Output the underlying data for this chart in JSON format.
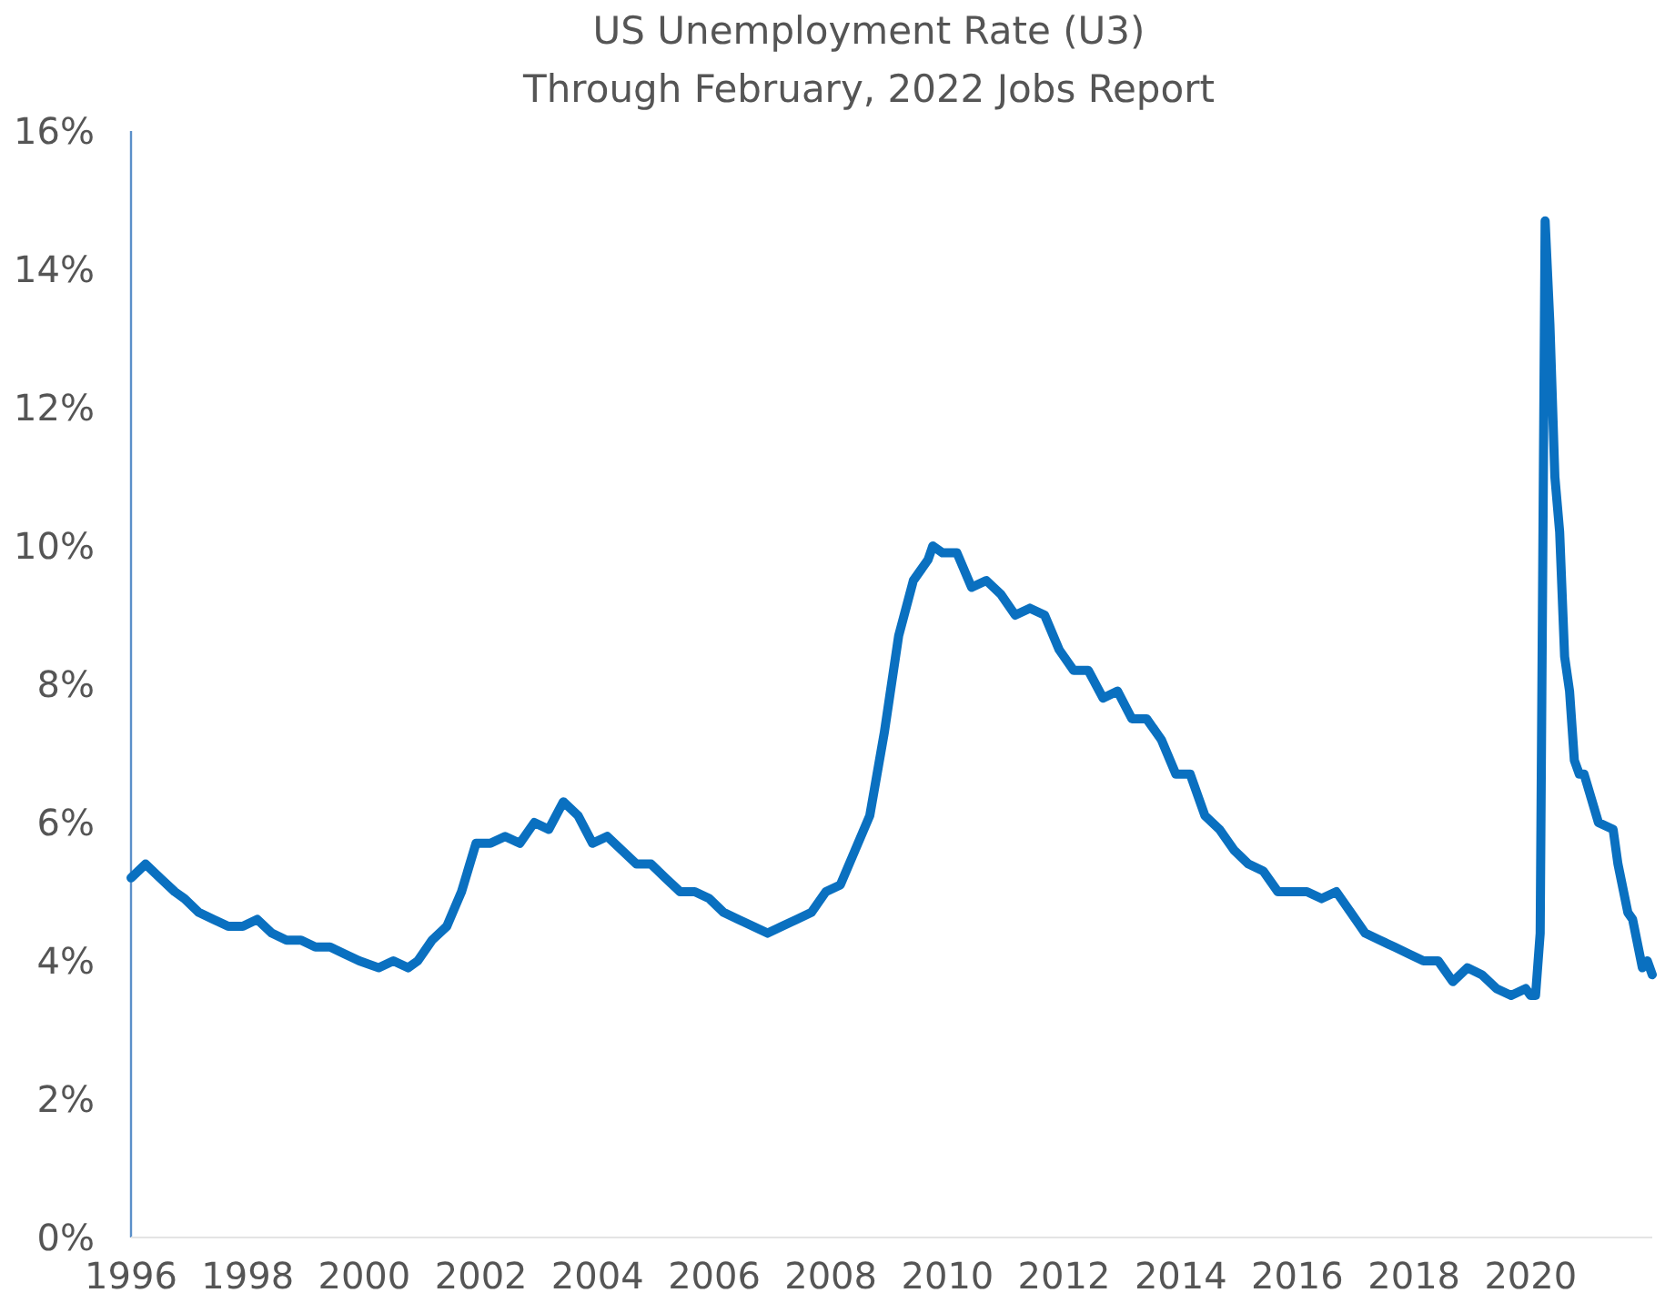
{
  "chart_data": {
    "type": "line",
    "title": "US Unemployment Rate (U3)",
    "subtitle": "Through February, 2022 Jobs Report",
    "x": [
      "1996-01",
      "1996-04",
      "1996-07",
      "1996-10",
      "1996-12",
      "1997-03",
      "1997-06",
      "1997-09",
      "1997-12",
      "1998-03",
      "1998-06",
      "1998-09",
      "1998-12",
      "1999-03",
      "1999-06",
      "1999-09",
      "1999-12",
      "2000-04",
      "2000-07",
      "2000-10",
      "2000-12",
      "2001-03",
      "2001-06",
      "2001-09",
      "2001-12",
      "2002-03",
      "2002-06",
      "2002-09",
      "2002-12",
      "2003-03",
      "2003-06",
      "2003-09",
      "2003-12",
      "2004-03",
      "2004-06",
      "2004-09",
      "2004-12",
      "2005-03",
      "2005-06",
      "2005-09",
      "2005-12",
      "2006-03",
      "2006-06",
      "2006-09",
      "2006-12",
      "2007-03",
      "2007-06",
      "2007-09",
      "2007-12",
      "2008-03",
      "2008-06",
      "2008-09",
      "2008-12",
      "2009-03",
      "2009-06",
      "2009-09",
      "2009-10",
      "2009-12",
      "2010-03",
      "2010-06",
      "2010-09",
      "2010-12",
      "2011-03",
      "2011-06",
      "2011-09",
      "2011-12",
      "2012-03",
      "2012-06",
      "2012-09",
      "2012-12",
      "2013-03",
      "2013-06",
      "2013-09",
      "2013-12",
      "2014-03",
      "2014-06",
      "2014-09",
      "2014-12",
      "2015-03",
      "2015-06",
      "2015-09",
      "2015-12",
      "2016-03",
      "2016-06",
      "2016-09",
      "2016-12",
      "2017-03",
      "2017-06",
      "2017-09",
      "2017-12",
      "2018-03",
      "2018-06",
      "2018-09",
      "2018-12",
      "2019-03",
      "2019-06",
      "2019-09",
      "2019-12",
      "2020-01",
      "2020-02",
      "2020-03",
      "2020-04",
      "2020-05",
      "2020-06",
      "2020-07",
      "2020-08",
      "2020-09",
      "2020-10",
      "2020-11",
      "2020-12",
      "2021-03",
      "2021-06",
      "2021-07",
      "2021-09",
      "2021-10",
      "2021-12",
      "2022-01",
      "2022-02"
    ],
    "series": [
      {
        "color": "#0a70c0",
        "values": [
          5.2,
          5.4,
          5.2,
          5.0,
          4.9,
          4.7,
          4.6,
          4.5,
          4.5,
          4.6,
          4.4,
          4.3,
          4.3,
          4.2,
          4.2,
          4.1,
          4.0,
          3.9,
          4.0,
          3.9,
          4.0,
          4.3,
          4.5,
          5.0,
          5.7,
          5.7,
          5.8,
          5.7,
          6.0,
          5.9,
          6.3,
          6.1,
          5.7,
          5.8,
          5.6,
          5.4,
          5.4,
          5.2,
          5.0,
          5.0,
          4.9,
          4.7,
          4.6,
          4.5,
          4.4,
          4.5,
          4.6,
          4.7,
          5.0,
          5.1,
          5.6,
          6.1,
          7.3,
          8.7,
          9.5,
          9.8,
          10.0,
          9.9,
          9.9,
          9.4,
          9.5,
          9.3,
          9.0,
          9.1,
          9.0,
          8.5,
          8.2,
          8.2,
          7.8,
          7.9,
          7.5,
          7.5,
          7.2,
          6.7,
          6.7,
          6.1,
          5.9,
          5.6,
          5.4,
          5.3,
          5.0,
          5.0,
          5.0,
          4.9,
          5.0,
          4.7,
          4.4,
          4.3,
          4.2,
          4.1,
          4.0,
          4.0,
          3.7,
          3.9,
          3.8,
          3.6,
          3.5,
          3.6,
          3.5,
          3.5,
          4.4,
          14.7,
          13.2,
          11.0,
          10.2,
          8.4,
          7.9,
          6.9,
          6.7,
          6.7,
          6.0,
          5.9,
          5.4,
          4.7,
          4.6,
          3.9,
          4.0,
          3.8
        ]
      }
    ],
    "xticks": [
      {
        "value": "1996",
        "label": "1996"
      },
      {
        "value": "1998",
        "label": "1998"
      },
      {
        "value": "2000",
        "label": "2000"
      },
      {
        "value": "2002",
        "label": "2002"
      },
      {
        "value": "2004",
        "label": "2004"
      },
      {
        "value": "2006",
        "label": "2006"
      },
      {
        "value": "2008",
        "label": "2008"
      },
      {
        "value": "2010",
        "label": "2010"
      },
      {
        "value": "2012",
        "label": "2012"
      },
      {
        "value": "2014",
        "label": "2014"
      },
      {
        "value": "2016",
        "label": "2016"
      },
      {
        "value": "2018",
        "label": "2018"
      },
      {
        "value": "2020",
        "label": "2020"
      }
    ],
    "xlim": [
      "1996-01",
      "2022-02"
    ],
    "ylim": [
      0,
      16
    ],
    "yticks": [
      {
        "value": 0,
        "label": "0%"
      },
      {
        "value": 2,
        "label": "2%"
      },
      {
        "value": 4,
        "label": "4%"
      },
      {
        "value": 6,
        "label": "6%"
      },
      {
        "value": 8,
        "label": "8%"
      },
      {
        "value": 10,
        "label": "10%"
      },
      {
        "value": 12,
        "label": "12%"
      },
      {
        "value": 14,
        "label": "14%"
      },
      {
        "value": 16,
        "label": "16%"
      }
    ],
    "grid": false,
    "line_style": "solid",
    "marker": "none"
  }
}
